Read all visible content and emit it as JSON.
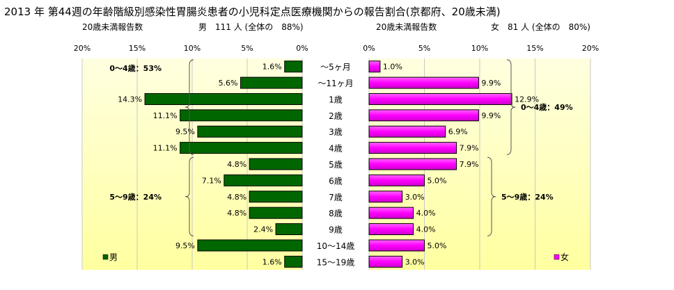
{
  "title": "2013 年 第44週の年齢階級別感染性胃腸炎患者の小児科定点医療機関からの報告割合(京都府、20歳未満)",
  "male_header": {
    "count_label": "20歳未満報告数",
    "summary": "男　111 人 (全体の　88%)"
  },
  "female_header": {
    "count_label": "20歳未満報告数",
    "summary": "女　81 人 (全体の　80%)"
  },
  "colors": {
    "male": "#006600",
    "female": "#ff00ff",
    "panel_top": "#ffffd9",
    "panel_bottom": "#ffff99"
  },
  "chart_data": {
    "type": "bar",
    "categories": [
      "～5ヶ月",
      "～11ヶ月",
      "1歳",
      "2歳",
      "3歳",
      "4歳",
      "5歳",
      "6歳",
      "7歳",
      "8歳",
      "9歳",
      "10～14歳",
      "15～19歳"
    ],
    "series": [
      {
        "name": "男",
        "values": [
          1.6,
          5.6,
          14.3,
          11.1,
          9.5,
          11.1,
          4.8,
          7.1,
          4.8,
          4.8,
          2.4,
          9.5,
          1.6
        ]
      },
      {
        "name": "女",
        "values": [
          1.0,
          9.9,
          12.9,
          9.9,
          6.9,
          7.9,
          7.9,
          5.0,
          3.0,
          4.0,
          4.0,
          5.0,
          3.0
        ]
      }
    ],
    "value_labels": {
      "male": [
        "1.6%",
        "5.6%",
        "14.3%",
        "11.1%",
        "9.5%",
        "11.1%",
        "4.8%",
        "7.1%",
        "4.8%",
        "4.8%",
        "2.4%",
        "9.5%",
        "1.6%"
      ],
      "female": [
        "1.0%",
        "9.9%",
        "12.9%",
        "9.9%",
        "6.9%",
        "7.9%",
        "7.9%",
        "5.0%",
        "3.0%",
        "4.0%",
        "4.0%",
        "5.0%",
        "3.0%"
      ]
    },
    "xlim": [
      0,
      20
    ],
    "ticks": [
      0,
      5,
      10,
      15,
      20
    ],
    "tick_labels": [
      "0%",
      "5%",
      "10%",
      "15%",
      "20%"
    ],
    "annotations": {
      "male": [
        {
          "text": "0～4歳：53%",
          "from": 0,
          "to": 5
        },
        {
          "text": "5～9歳：24%",
          "from": 6,
          "to": 10
        }
      ],
      "female": [
        {
          "text": "0～4歳：49%",
          "from": 0,
          "to": 5
        },
        {
          "text": "5～9歳：24%",
          "from": 6,
          "to": 10
        }
      ]
    },
    "legend": [
      {
        "label": "男",
        "series": "male",
        "position": "bottom-left"
      },
      {
        "label": "女",
        "series": "female",
        "position": "bottom-right"
      }
    ],
    "grid": true
  }
}
